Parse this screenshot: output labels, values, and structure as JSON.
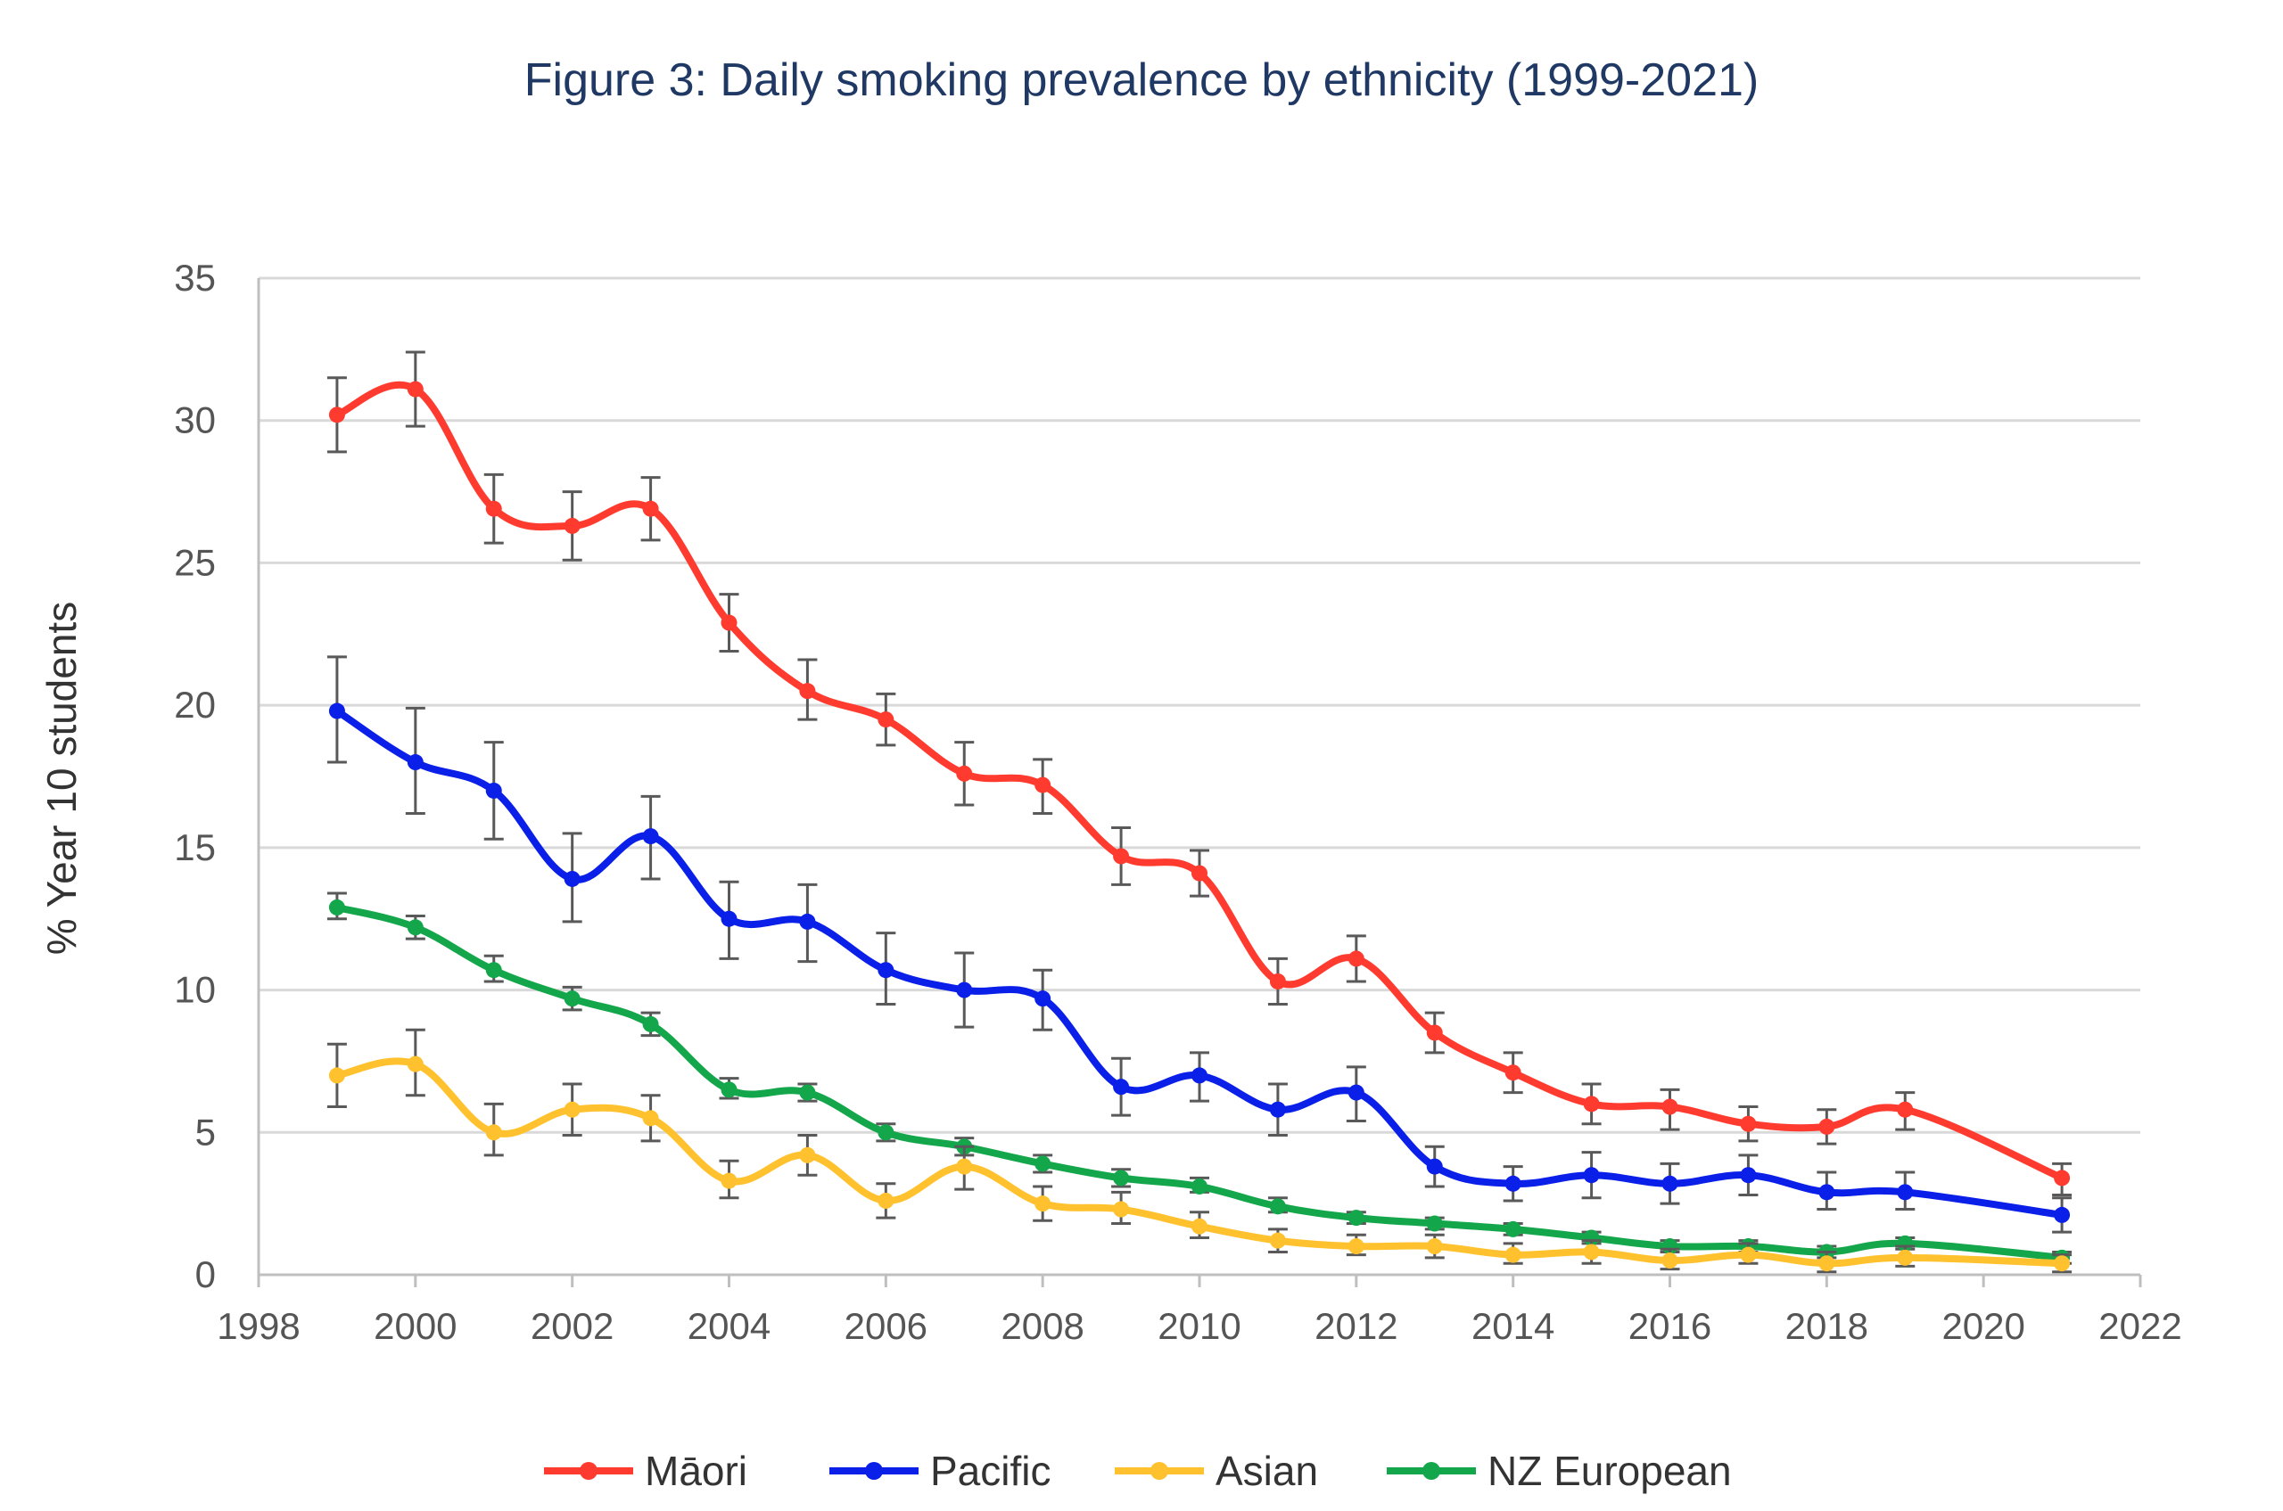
{
  "chart_data": {
    "type": "line",
    "title": "Figure 3: Daily smoking prevalence by ethnicity (1999-2021)",
    "xlabel": "",
    "ylabel": "% Year 10 students",
    "xlim": [
      1998,
      2022
    ],
    "ylim": [
      0,
      35
    ],
    "x_ticks": [
      1998,
      2000,
      2002,
      2004,
      2006,
      2008,
      2010,
      2012,
      2014,
      2016,
      2018,
      2020,
      2022
    ],
    "y_ticks": [
      0,
      5,
      10,
      15,
      20,
      25,
      30,
      35
    ],
    "grid": "horizontal",
    "legend_position": "bottom",
    "x": [
      1999,
      2000,
      2001,
      2002,
      2003,
      2004,
      2005,
      2006,
      2007,
      2008,
      2009,
      2010,
      2011,
      2012,
      2013,
      2014,
      2015,
      2016,
      2017,
      2018,
      2019,
      2021
    ],
    "series": [
      {
        "name": "Māori",
        "color": "#ff3b2f",
        "values": [
          30.2,
          31.1,
          26.9,
          26.3,
          26.9,
          22.9,
          20.5,
          19.5,
          17.6,
          17.2,
          14.7,
          14.1,
          10.3,
          11.1,
          8.5,
          7.1,
          6.0,
          5.9,
          5.3,
          5.2,
          5.8,
          3.4
        ],
        "error_low": [
          28.9,
          29.8,
          25.7,
          25.1,
          25.8,
          21.9,
          19.5,
          18.6,
          16.5,
          16.2,
          13.7,
          13.3,
          9.5,
          10.3,
          7.8,
          6.4,
          5.3,
          5.1,
          4.7,
          4.6,
          5.1,
          2.8
        ],
        "error_high": [
          31.5,
          32.4,
          28.1,
          27.5,
          28.0,
          23.9,
          21.6,
          20.4,
          18.7,
          18.1,
          15.7,
          14.9,
          11.1,
          11.9,
          9.2,
          7.8,
          6.7,
          6.5,
          5.9,
          5.8,
          6.4,
          3.9
        ]
      },
      {
        "name": "Pacific",
        "color": "#0a1fe8",
        "values": [
          19.8,
          18.0,
          17.0,
          13.9,
          15.4,
          12.5,
          12.4,
          10.7,
          10.0,
          9.7,
          6.6,
          7.0,
          5.8,
          6.4,
          3.8,
          3.2,
          3.5,
          3.2,
          3.5,
          2.9,
          2.9,
          2.1
        ],
        "error_low": [
          18.0,
          16.2,
          15.3,
          12.4,
          13.9,
          11.1,
          11.0,
          9.5,
          8.7,
          8.6,
          5.6,
          6.1,
          4.9,
          5.4,
          3.1,
          2.6,
          2.7,
          2.5,
          2.8,
          2.3,
          2.3,
          1.5
        ],
        "error_high": [
          21.7,
          19.9,
          18.7,
          15.5,
          16.8,
          13.8,
          13.7,
          12.0,
          11.3,
          10.7,
          7.6,
          7.8,
          6.7,
          7.3,
          4.5,
          3.8,
          4.3,
          3.9,
          4.2,
          3.6,
          3.6,
          2.7
        ]
      },
      {
        "name": "Asian",
        "color": "#ffc22e",
        "values": [
          7.0,
          7.4,
          5.0,
          5.8,
          5.5,
          3.3,
          4.2,
          2.6,
          3.8,
          2.5,
          2.3,
          1.7,
          1.2,
          1.0,
          1.0,
          0.7,
          0.8,
          0.5,
          0.7,
          0.4,
          0.6,
          0.4
        ],
        "error_low": [
          5.9,
          6.3,
          4.2,
          4.9,
          4.7,
          2.7,
          3.5,
          2.0,
          3.0,
          1.9,
          1.8,
          1.3,
          0.8,
          0.7,
          0.6,
          0.4,
          0.4,
          0.2,
          0.4,
          0.1,
          0.3,
          0.1
        ],
        "error_high": [
          8.1,
          8.6,
          6.0,
          6.7,
          6.3,
          4.0,
          4.9,
          3.2,
          4.5,
          3.1,
          2.9,
          2.2,
          1.6,
          1.4,
          1.4,
          1.1,
          1.2,
          0.9,
          1.1,
          0.8,
          1.0,
          0.7
        ]
      },
      {
        "name": "NZ European",
        "color": "#14a64a",
        "values": [
          12.9,
          12.2,
          10.7,
          9.7,
          8.8,
          6.5,
          6.4,
          5.0,
          4.5,
          3.9,
          3.4,
          3.1,
          2.4,
          2.0,
          1.8,
          1.6,
          1.3,
          1.0,
          1.0,
          0.8,
          1.1,
          0.6
        ],
        "error_low": [
          12.5,
          11.8,
          10.3,
          9.3,
          8.4,
          6.2,
          6.1,
          4.7,
          4.2,
          3.6,
          3.1,
          2.9,
          2.2,
          1.8,
          1.6,
          1.4,
          1.1,
          0.8,
          0.8,
          0.6,
          0.9,
          0.4
        ],
        "error_high": [
          13.4,
          12.6,
          11.2,
          10.1,
          9.2,
          6.9,
          6.7,
          5.3,
          4.8,
          4.2,
          3.7,
          3.4,
          2.7,
          2.2,
          2.0,
          1.8,
          1.5,
          1.2,
          1.2,
          1.0,
          1.3,
          0.8
        ]
      }
    ]
  }
}
